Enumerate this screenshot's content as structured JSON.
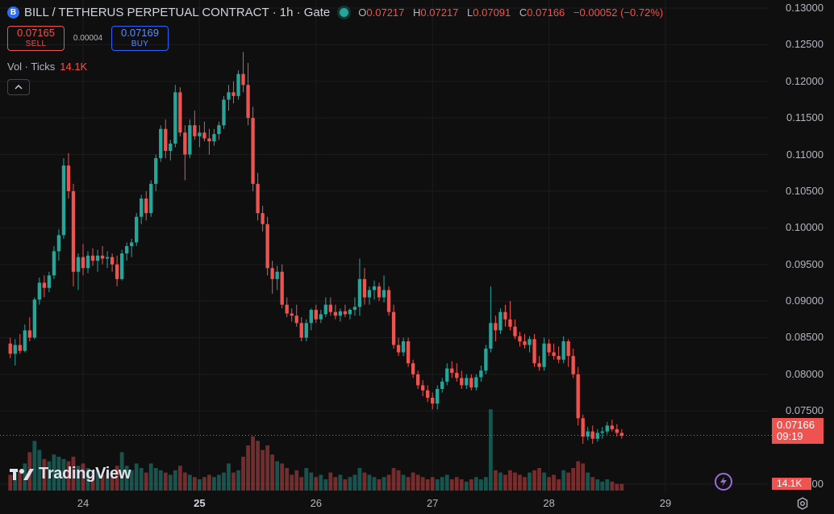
{
  "header": {
    "symbol_badge": "B",
    "title": "BILL / TETHERUS PERPETUAL CONTRACT · 1h · Gate",
    "ohlc": {
      "o_label": "O",
      "o": "0.07217",
      "h_label": "H",
      "h": "0.07217",
      "l_label": "L",
      "l": "0.07091",
      "c_label": "C",
      "c": "0.07166",
      "change": "−0.00052 (−0.72%)"
    }
  },
  "trade": {
    "sell_price": "0.07165",
    "sell_label": "SELL",
    "spread": "0.00004",
    "buy_price": "0.07169",
    "buy_label": "BUY"
  },
  "volume": {
    "label": "Vol · Ticks",
    "value": "14.1K"
  },
  "price_tag": {
    "price": "0.07166",
    "countdown": "09:19"
  },
  "volume_tag": "14.1K",
  "brand": "TradingView",
  "colors": {
    "up": "#26a69a",
    "down": "#ef5350",
    "background": "#0f0f0f",
    "accent": "#2962ff"
  },
  "icons": {
    "collapse": "chevron-up-icon",
    "replay": "lightning-icon",
    "settings": "gear-icon"
  },
  "chart_data": {
    "type": "candlestick",
    "y_ticks": [
      "0.13000",
      "0.12500",
      "0.12000",
      "0.11500",
      "0.11000",
      "0.10500",
      "0.10000",
      "0.09500",
      "0.09000",
      "0.08500",
      "0.08000",
      "0.07500",
      "0.06500"
    ],
    "x_ticks": [
      {
        "label": "24",
        "bold": false,
        "day": 24
      },
      {
        "label": "25",
        "bold": true,
        "day": 25
      },
      {
        "label": "26",
        "bold": false,
        "day": 26
      },
      {
        "label": "27",
        "bold": false,
        "day": 27
      },
      {
        "label": "28",
        "bold": false,
        "day": 28
      },
      {
        "label": "29",
        "bold": false,
        "day": 29
      }
    ],
    "ylim": [
      0.0625,
      0.1305
    ],
    "current_price": 0.07166,
    "start": "2024-06-23 09:00",
    "interval": "1h",
    "candles": [
      [
        0.0842,
        0.085,
        0.0822,
        0.0828,
        7
      ],
      [
        0.0828,
        0.0848,
        0.0812,
        0.084,
        8
      ],
      [
        0.084,
        0.0855,
        0.0828,
        0.0832,
        9
      ],
      [
        0.0832,
        0.0868,
        0.083,
        0.086,
        12
      ],
      [
        0.086,
        0.0878,
        0.0845,
        0.085,
        17
      ],
      [
        0.085,
        0.0905,
        0.0848,
        0.0902,
        22
      ],
      [
        0.0902,
        0.0932,
        0.0895,
        0.0925,
        18
      ],
      [
        0.0925,
        0.0935,
        0.0905,
        0.0918,
        14
      ],
      [
        0.0918,
        0.094,
        0.0912,
        0.0935,
        13
      ],
      [
        0.0935,
        0.0975,
        0.093,
        0.0968,
        16
      ],
      [
        0.0968,
        0.0998,
        0.0955,
        0.099,
        15
      ],
      [
        0.099,
        0.1095,
        0.0985,
        0.1085,
        14
      ],
      [
        0.1085,
        0.1102,
        0.104,
        0.105,
        13
      ],
      [
        0.105,
        0.106,
        0.092,
        0.094,
        15
      ],
      [
        0.094,
        0.0965,
        0.0915,
        0.096,
        11
      ],
      [
        0.096,
        0.0978,
        0.0935,
        0.0945,
        12
      ],
      [
        0.0945,
        0.0968,
        0.0938,
        0.0962,
        10
      ],
      [
        0.0962,
        0.0972,
        0.0948,
        0.0955,
        8
      ],
      [
        0.0955,
        0.097,
        0.094,
        0.0962,
        9
      ],
      [
        0.0962,
        0.0975,
        0.095,
        0.0958,
        7
      ],
      [
        0.0958,
        0.0968,
        0.0945,
        0.096,
        8
      ],
      [
        0.096,
        0.0965,
        0.094,
        0.095,
        6
      ],
      [
        0.095,
        0.0962,
        0.092,
        0.093,
        11
      ],
      [
        0.093,
        0.097,
        0.0928,
        0.0965,
        17
      ],
      [
        0.0965,
        0.098,
        0.0955,
        0.0975,
        11
      ],
      [
        0.0975,
        0.0985,
        0.096,
        0.098,
        9
      ],
      [
        0.098,
        0.102,
        0.0975,
        0.1015,
        12
      ],
      [
        0.1015,
        0.1045,
        0.1005,
        0.104,
        10
      ],
      [
        0.104,
        0.105,
        0.101,
        0.102,
        8
      ],
      [
        0.102,
        0.1065,
        0.1015,
        0.106,
        12
      ],
      [
        0.106,
        0.11,
        0.105,
        0.1095,
        10
      ],
      [
        0.1095,
        0.114,
        0.109,
        0.1135,
        9
      ],
      [
        0.1135,
        0.1148,
        0.1095,
        0.1105,
        8
      ],
      [
        0.1105,
        0.112,
        0.1092,
        0.1115,
        7
      ],
      [
        0.1115,
        0.1195,
        0.111,
        0.1185,
        9
      ],
      [
        0.1185,
        0.1192,
        0.1125,
        0.113,
        11
      ],
      [
        0.113,
        0.114,
        0.1065,
        0.11,
        8
      ],
      [
        0.11,
        0.1148,
        0.1095,
        0.114,
        7
      ],
      [
        0.114,
        0.116,
        0.112,
        0.1125,
        6
      ],
      [
        0.1125,
        0.114,
        0.111,
        0.113,
        5
      ],
      [
        0.113,
        0.1145,
        0.1118,
        0.1122,
        6
      ],
      [
        0.1122,
        0.1135,
        0.11,
        0.1118,
        7
      ],
      [
        0.1118,
        0.1135,
        0.1112,
        0.1128,
        6
      ],
      [
        0.1128,
        0.1145,
        0.112,
        0.114,
        7
      ],
      [
        0.114,
        0.118,
        0.1135,
        0.1175,
        8
      ],
      [
        0.1175,
        0.1195,
        0.116,
        0.1185,
        12
      ],
      [
        0.1185,
        0.12,
        0.117,
        0.118,
        8
      ],
      [
        0.118,
        0.1215,
        0.1175,
        0.121,
        9
      ],
      [
        0.121,
        0.124,
        0.1185,
        0.1195,
        15
      ],
      [
        0.1195,
        0.1225,
        0.114,
        0.115,
        20
      ],
      [
        0.115,
        0.1165,
        0.105,
        0.106,
        24
      ],
      [
        0.106,
        0.1075,
        0.101,
        0.102,
        22
      ],
      [
        0.102,
        0.103,
        0.0995,
        0.1005,
        18
      ],
      [
        0.1005,
        0.1015,
        0.0935,
        0.0945,
        20
      ],
      [
        0.0945,
        0.0955,
        0.091,
        0.093,
        16
      ],
      [
        0.093,
        0.0948,
        0.0915,
        0.094,
        13
      ],
      [
        0.094,
        0.095,
        0.089,
        0.0895,
        12
      ],
      [
        0.0895,
        0.0905,
        0.0878,
        0.0883,
        10
      ],
      [
        0.0883,
        0.089,
        0.0872,
        0.088,
        7
      ],
      [
        0.088,
        0.0895,
        0.0865,
        0.087,
        9
      ],
      [
        0.087,
        0.0878,
        0.0845,
        0.085,
        6
      ],
      [
        0.085,
        0.0875,
        0.0845,
        0.087,
        10
      ],
      [
        0.087,
        0.089,
        0.086,
        0.0888,
        8
      ],
      [
        0.0888,
        0.0895,
        0.087,
        0.0875,
        6
      ],
      [
        0.0875,
        0.0888,
        0.087,
        0.0882,
        7
      ],
      [
        0.0882,
        0.0905,
        0.0878,
        0.0895,
        5
      ],
      [
        0.0895,
        0.0905,
        0.088,
        0.0885,
        8
      ],
      [
        0.0885,
        0.0895,
        0.0875,
        0.088,
        6
      ],
      [
        0.088,
        0.089,
        0.0872,
        0.0886,
        7
      ],
      [
        0.0886,
        0.0895,
        0.0878,
        0.0882,
        5
      ],
      [
        0.0882,
        0.089,
        0.0875,
        0.0888,
        6
      ],
      [
        0.0888,
        0.0905,
        0.088,
        0.0892,
        7
      ],
      [
        0.0892,
        0.0958,
        0.088,
        0.093,
        10
      ],
      [
        0.093,
        0.0945,
        0.0895,
        0.0905,
        8
      ],
      [
        0.0905,
        0.092,
        0.0895,
        0.0915,
        7
      ],
      [
        0.0915,
        0.0928,
        0.0902,
        0.092,
        6
      ],
      [
        0.092,
        0.0925,
        0.09,
        0.0905,
        5
      ],
      [
        0.0905,
        0.0935,
        0.0898,
        0.0915,
        6
      ],
      [
        0.0915,
        0.092,
        0.088,
        0.0885,
        7
      ],
      [
        0.0885,
        0.0895,
        0.0835,
        0.084,
        10
      ],
      [
        0.084,
        0.085,
        0.0825,
        0.083,
        9
      ],
      [
        0.083,
        0.085,
        0.0825,
        0.0845,
        7
      ],
      [
        0.0845,
        0.085,
        0.081,
        0.0815,
        6
      ],
      [
        0.0815,
        0.082,
        0.0795,
        0.08,
        8
      ],
      [
        0.08,
        0.0805,
        0.078,
        0.0785,
        7
      ],
      [
        0.0785,
        0.0792,
        0.077,
        0.0778,
        6
      ],
      [
        0.0778,
        0.0785,
        0.0762,
        0.0768,
        5
      ],
      [
        0.0768,
        0.0775,
        0.0752,
        0.076,
        6
      ],
      [
        0.076,
        0.0785,
        0.0752,
        0.078,
        5
      ],
      [
        0.078,
        0.0795,
        0.0775,
        0.079,
        6
      ],
      [
        0.079,
        0.0815,
        0.0785,
        0.0808,
        7
      ],
      [
        0.0808,
        0.0818,
        0.0795,
        0.0802,
        5
      ],
      [
        0.0802,
        0.0815,
        0.079,
        0.0795,
        6
      ],
      [
        0.0795,
        0.0805,
        0.078,
        0.0785,
        5
      ],
      [
        0.0785,
        0.08,
        0.078,
        0.0795,
        4
      ],
      [
        0.0795,
        0.08,
        0.0778,
        0.0782,
        5
      ],
      [
        0.0782,
        0.08,
        0.0778,
        0.0796,
        6
      ],
      [
        0.0796,
        0.0812,
        0.079,
        0.0805,
        5
      ],
      [
        0.0805,
        0.084,
        0.08,
        0.0835,
        6
      ],
      [
        0.0835,
        0.092,
        0.083,
        0.087,
        36
      ],
      [
        0.087,
        0.088,
        0.0845,
        0.086,
        9
      ],
      [
        0.086,
        0.089,
        0.0855,
        0.0885,
        8
      ],
      [
        0.0885,
        0.0895,
        0.0865,
        0.0875,
        7
      ],
      [
        0.0875,
        0.09,
        0.086,
        0.0865,
        9
      ],
      [
        0.0865,
        0.0875,
        0.0848,
        0.0852,
        8
      ],
      [
        0.0852,
        0.0858,
        0.0838,
        0.0845,
        7
      ],
      [
        0.0845,
        0.0855,
        0.0835,
        0.084,
        6
      ],
      [
        0.084,
        0.0852,
        0.083,
        0.0848,
        8
      ],
      [
        0.0848,
        0.0855,
        0.081,
        0.0815,
        9
      ],
      [
        0.0815,
        0.0825,
        0.0805,
        0.081,
        10
      ],
      [
        0.081,
        0.085,
        0.0805,
        0.0842,
        8
      ],
      [
        0.0842,
        0.0848,
        0.0825,
        0.083,
        6
      ],
      [
        0.083,
        0.0842,
        0.082,
        0.0825,
        7
      ],
      [
        0.0825,
        0.0838,
        0.0815,
        0.082,
        5
      ],
      [
        0.082,
        0.0852,
        0.0815,
        0.0845,
        9
      ],
      [
        0.0845,
        0.0848,
        0.081,
        0.0825,
        8
      ],
      [
        0.0825,
        0.0835,
        0.0795,
        0.08,
        10
      ],
      [
        0.08,
        0.081,
        0.073,
        0.074,
        13
      ],
      [
        0.074,
        0.0745,
        0.0705,
        0.0715,
        12
      ],
      [
        0.0715,
        0.0728,
        0.071,
        0.0722,
        8
      ],
      [
        0.0722,
        0.073,
        0.0705,
        0.0712,
        6
      ],
      [
        0.0712,
        0.0725,
        0.0708,
        0.072,
        5
      ],
      [
        0.072,
        0.0728,
        0.0712,
        0.0722,
        4
      ],
      [
        0.0722,
        0.0735,
        0.0718,
        0.073,
        5
      ],
      [
        0.073,
        0.0738,
        0.0722,
        0.0725,
        4
      ],
      [
        0.0725,
        0.0732,
        0.0715,
        0.072,
        3
      ],
      [
        0.072,
        0.0725,
        0.0712,
        0.0716,
        3
      ]
    ]
  }
}
